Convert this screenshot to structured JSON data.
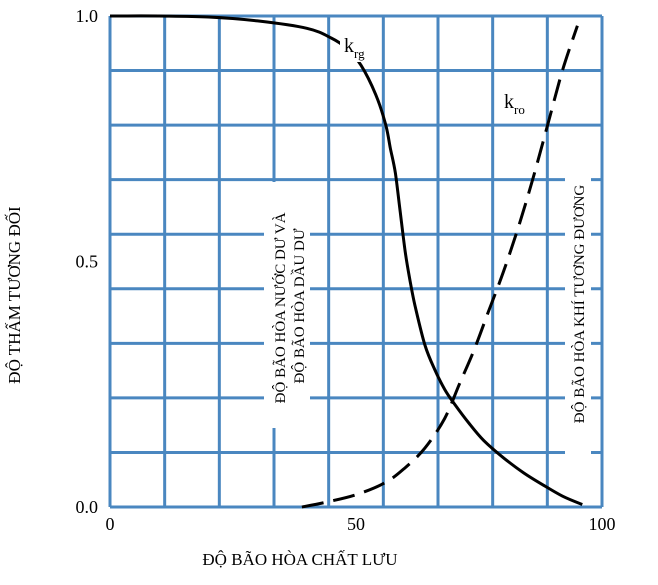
{
  "chart_data": {
    "type": "line",
    "xlabel": "ĐỘ BÃO HÒA CHẤT LƯU",
    "ylabel": "ĐỘ THẤM TƯƠNG ĐỐI",
    "xlim": [
      0,
      100
    ],
    "ylim": [
      0,
      1.0
    ],
    "x_ticks": [
      0,
      50,
      100
    ],
    "x_tick_labels": [
      "0",
      "50",
      "100"
    ],
    "y_ticks": [
      0,
      0.5,
      1.0
    ],
    "y_tick_labels": [
      "0.0",
      "0.5",
      "1.0"
    ],
    "grid": true,
    "grid_color": "#4a87c0",
    "series": [
      {
        "name": "krg",
        "label_main": "k",
        "label_sub": "rg",
        "style": "solid",
        "color": "#000000",
        "x": [
          0,
          10,
          20,
          30,
          40,
          45,
          48,
          51,
          54,
          56,
          57,
          58,
          59,
          60,
          61,
          62,
          64,
          66,
          68,
          70,
          73,
          76,
          80,
          84,
          88,
          92,
          96
        ],
        "y": [
          1.0,
          1.0,
          0.998,
          0.99,
          0.975,
          0.955,
          0.935,
          0.9,
          0.84,
          0.78,
          0.73,
          0.68,
          0.6,
          0.52,
          0.46,
          0.41,
          0.33,
          0.28,
          0.24,
          0.21,
          0.17,
          0.135,
          0.1,
          0.07,
          0.045,
          0.022,
          0.005
        ]
      },
      {
        "name": "kro",
        "label_main": "k",
        "label_sub": "ro",
        "style": "dashed",
        "color": "#000000",
        "x": [
          39,
          44,
          50,
          56,
          60,
          64,
          68,
          71,
          74,
          77,
          80,
          83,
          86,
          89,
          92,
          95
        ],
        "y": [
          0.0,
          0.01,
          0.025,
          0.05,
          0.08,
          0.12,
          0.18,
          0.25,
          0.32,
          0.4,
          0.48,
          0.57,
          0.67,
          0.78,
          0.89,
          0.98
        ]
      }
    ],
    "annotations": [
      {
        "id": "residual",
        "lines": [
          "ĐỘ BÃO HÒA NƯỚC DƯ VÀ",
          "ĐỘ BÃO HÒA DẦU DƯ"
        ]
      },
      {
        "id": "equivalent",
        "lines": [
          "ĐỘ BÃO HÒA KHÍ TƯƠNG ĐƯƠNG"
        ]
      }
    ]
  }
}
